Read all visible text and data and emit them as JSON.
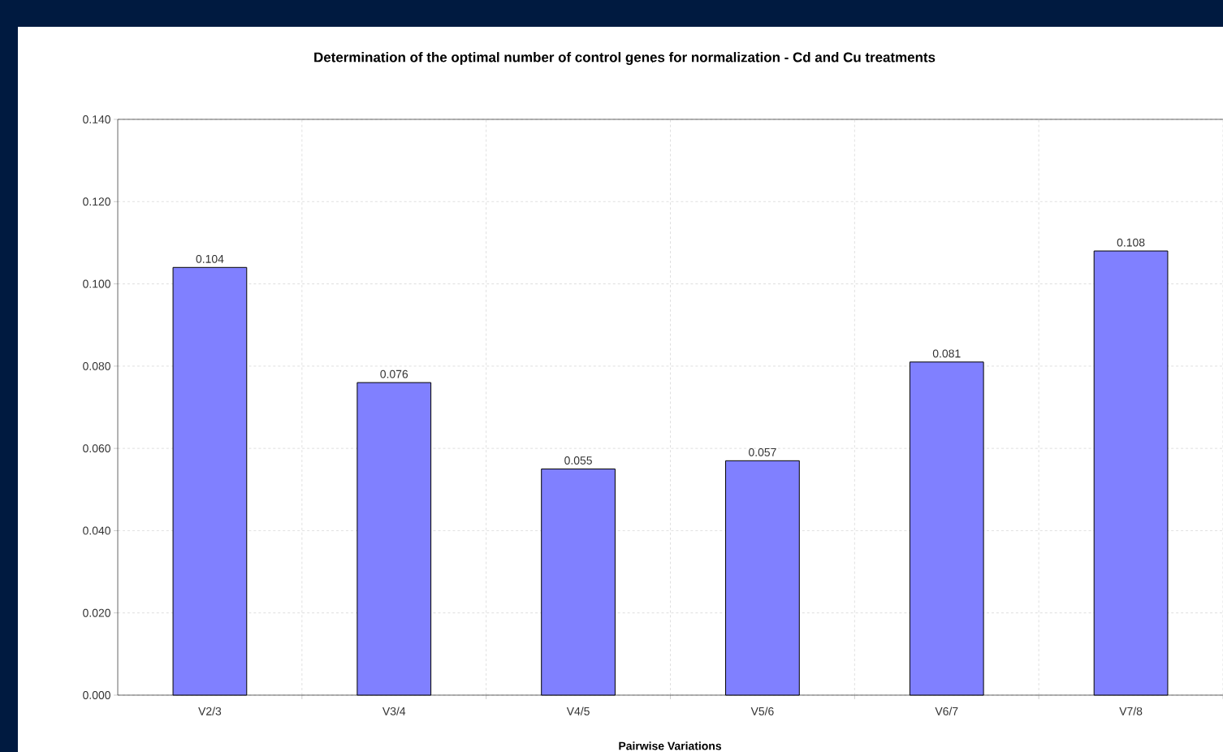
{
  "chart_data": {
    "type": "bar",
    "title": "Determination of the optimal number of control genes for normalization - Cd and Cu treatments",
    "xlabel": "Pairwise Variations",
    "categories": [
      "V2/3",
      "V3/4",
      "V4/5",
      "V5/6",
      "V6/7",
      "V7/8"
    ],
    "values": [
      0.104,
      0.076,
      0.055,
      0.057,
      0.081,
      0.108
    ],
    "value_labels": [
      "0.104",
      "0.076",
      "0.055",
      "0.057",
      "0.081",
      "0.108"
    ],
    "color": "#8080ff",
    "ylim": [
      0,
      0.14
    ],
    "yticks": [
      {
        "value": 0,
        "label": "0.000"
      },
      {
        "value": 0.02,
        "label": "0.020"
      },
      {
        "value": 0.04,
        "label": "0.040"
      },
      {
        "value": 0.06,
        "label": "0.060"
      },
      {
        "value": 0.08,
        "label": "0.080"
      },
      {
        "value": 0.1,
        "label": "0.100"
      },
      {
        "value": 0.12,
        "label": "0.120"
      },
      {
        "value": 0.14,
        "label": "0.140"
      }
    ],
    "grid": true
  }
}
